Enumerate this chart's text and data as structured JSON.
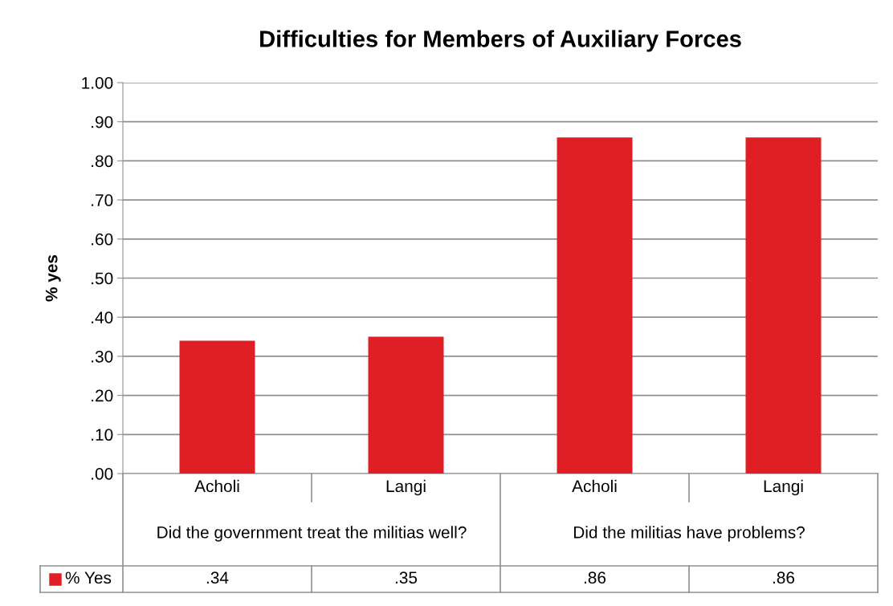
{
  "chart_data": {
    "type": "bar",
    "title": "Difficulties for Members of Auxiliary Forces",
    "ylabel": "% yes",
    "categories": [
      "Acholi",
      "Langi",
      "Acholi",
      "Langi"
    ],
    "annotations": [
      "Did the government treat the militias well?",
      "Did the militias have problems?"
    ],
    "series": [
      {
        "name": "% Yes",
        "color": "#e01e26",
        "values": [
          0.34,
          0.35,
          0.86,
          0.86
        ],
        "value_labels": [
          ".34",
          ".35",
          ".86",
          ".86"
        ]
      }
    ],
    "ylim": [
      0,
      1
    ],
    "yticks": [
      {
        "value": 0,
        "label": ".00"
      },
      {
        "value": 0.1,
        "label": ".10"
      },
      {
        "value": 0.2,
        "label": ".20"
      },
      {
        "value": 0.3,
        "label": ".30"
      },
      {
        "value": 0.4,
        "label": ".40"
      },
      {
        "value": 0.5,
        "label": ".50"
      },
      {
        "value": 0.6,
        "label": ".60"
      },
      {
        "value": 0.7,
        "label": ".70"
      },
      {
        "value": 0.8,
        "label": ".80"
      },
      {
        "value": 0.9,
        "label": ".90"
      },
      {
        "value": 1,
        "label": "1.00"
      }
    ],
    "grid": "y",
    "legend": "bottom"
  }
}
